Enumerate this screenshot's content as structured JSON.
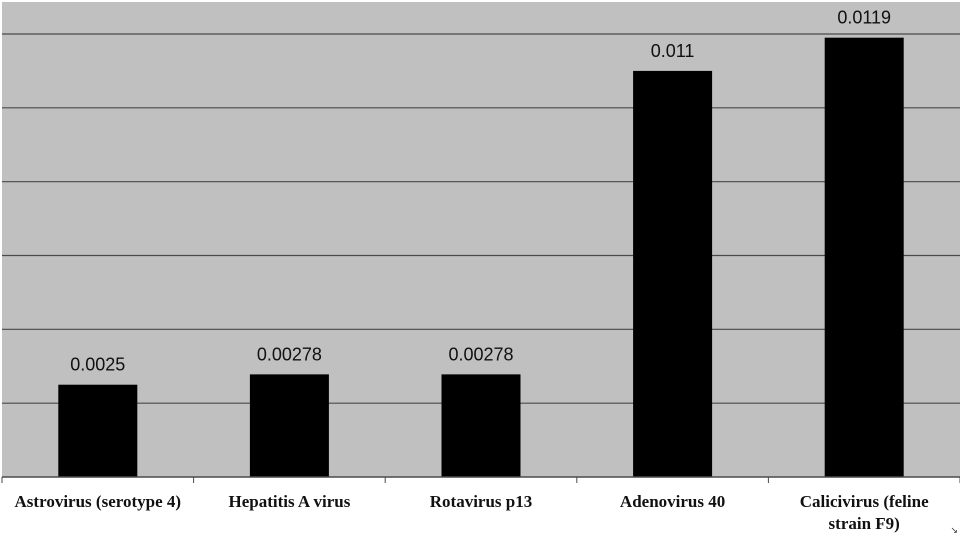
{
  "chart_data": {
    "type": "bar",
    "categories": [
      [
        "Astrovirus (serotype 4)"
      ],
      [
        "Hepatitis A virus"
      ],
      [
        "Rotavirus p13"
      ],
      [
        "Adenovirus 40"
      ],
      [
        "Calicivirus (feline",
        "strain F9)"
      ]
    ],
    "values": [
      0.0025,
      0.00278,
      0.00278,
      0.011,
      0.0119
    ],
    "value_labels": [
      "0.0025",
      "0.00278",
      "0.00278",
      "0.011",
      "0.0119"
    ],
    "title": "",
    "xlabel": "",
    "ylabel": "",
    "ylim": [
      0,
      0.012
    ],
    "grid": true,
    "colors": {
      "plot_bg": "#c0c0c0",
      "bar": "#000000",
      "grid": "#4a4a4a",
      "text": "#111111"
    }
  },
  "corner_icon": "resize-corner-icon"
}
